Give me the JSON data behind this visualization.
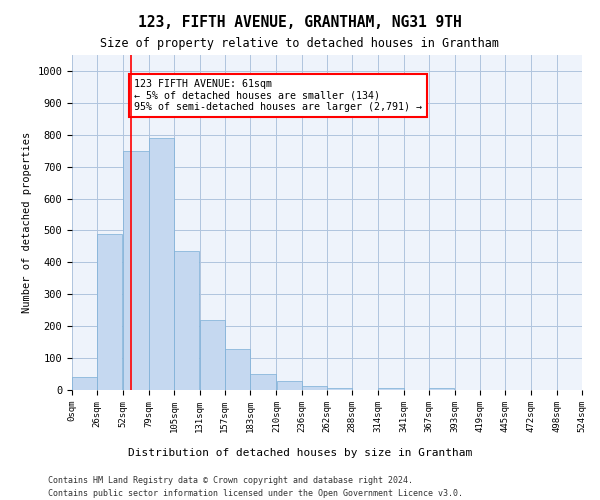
{
  "title": "123, FIFTH AVENUE, GRANTHAM, NG31 9TH",
  "subtitle": "Size of property relative to detached houses in Grantham",
  "xlabel": "Distribution of detached houses by size in Grantham",
  "ylabel": "Number of detached properties",
  "bar_color": "#c5d8f0",
  "bar_edge_color": "#7aaed6",
  "grid_color": "#b0c4de",
  "bg_color": "#eef3fb",
  "property_line_x": 61,
  "property_line_color": "red",
  "annotation_text": "123 FIFTH AVENUE: 61sqm\n← 5% of detached houses are smaller (134)\n95% of semi-detached houses are larger (2,791) →",
  "annotation_box_color": "white",
  "annotation_edge_color": "red",
  "bins": [
    0,
    26,
    52,
    79,
    105,
    131,
    157,
    183,
    210,
    236,
    262,
    288,
    314,
    341,
    367,
    393,
    419,
    445,
    472,
    498,
    524
  ],
  "bar_heights": [
    42,
    490,
    748,
    790,
    435,
    218,
    130,
    50,
    27,
    13,
    7,
    0,
    7,
    0,
    7,
    0,
    0,
    0,
    0,
    0
  ],
  "ylim": [
    0,
    1050
  ],
  "yticks": [
    0,
    100,
    200,
    300,
    400,
    500,
    600,
    700,
    800,
    900,
    1000
  ],
  "footer_line1": "Contains HM Land Registry data © Crown copyright and database right 2024.",
  "footer_line2": "Contains public sector information licensed under the Open Government Licence v3.0."
}
